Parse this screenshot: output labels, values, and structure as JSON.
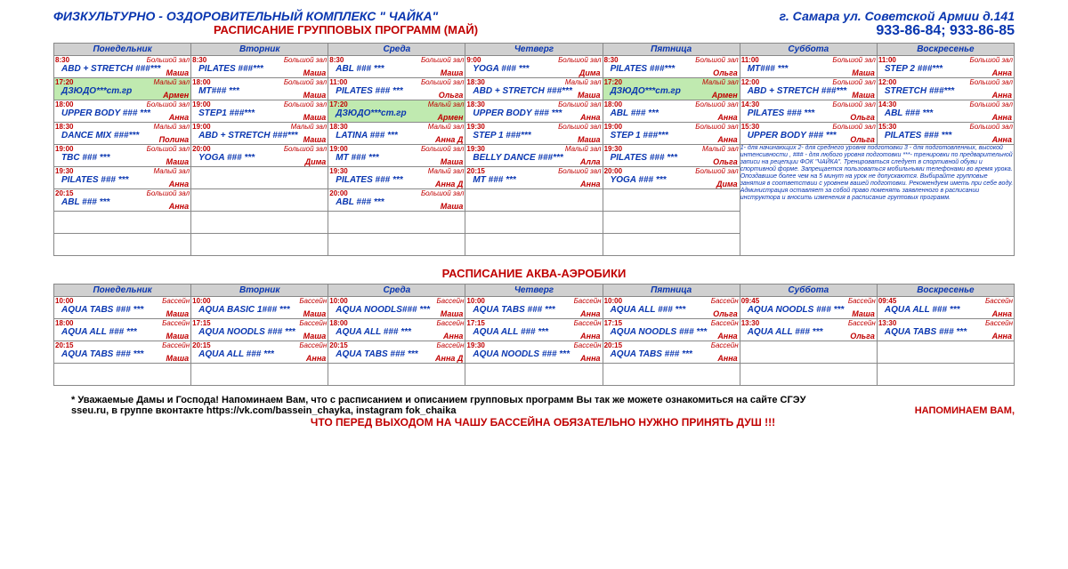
{
  "header": {
    "title": "ФИЗКУЛЬТУРНО - ОЗДОРОВИТЕЛЬНЫЙ КОМПЛЕКС \" ЧАЙКА\"",
    "address": "г. Самара ул. Советской Армии д.141",
    "subtitle": "РАСПИСАНИЕ ГРУППОВЫХ ПРОГРАММ (МАЙ)",
    "phones": "933-86-84; 933-86-85"
  },
  "days": [
    "Понедельник",
    "Вторник",
    "Среда",
    "Четверг",
    "Пятница",
    "Суббота",
    "Воскресенье"
  ],
  "group": {
    "rows": [
      [
        {
          "t": "8:30",
          "r": "Большой зал",
          "c": "ABD + STRETCH  ###***",
          "tr": "Маша"
        },
        {
          "t": "8:30",
          "r": "Большой зал",
          "c": "PILATES ###***",
          "tr": "Маша"
        },
        {
          "t": "8:30",
          "r": "Большой зал",
          "c": "ABL ### ***",
          "tr": "Маша"
        },
        {
          "t": "9:00",
          "r": "Большой зал",
          "c": "YOGA ### ***",
          "tr": "Дима"
        },
        {
          "t": "8:30",
          "r": "Большой зал",
          "c": "PILATES ###***",
          "tr": "Ольга"
        },
        {
          "t": "11:00",
          "r": "Большой зал",
          "c": "MT### ***",
          "tr": "Маша"
        },
        {
          "t": "11:00",
          "r": "Большой зал",
          "c": "STEP 2 ###***",
          "tr": "Анна"
        }
      ],
      [
        {
          "t": "17:20",
          "r": "Малый зал",
          "c": "ДЗЮДО***ст.гр",
          "tr": "Армен",
          "g": true
        },
        {
          "t": "18:00",
          "r": "Большой зал",
          "c": "MT### ***",
          "tr": "Маша"
        },
        {
          "t": "11:00",
          "r": "Большой зал",
          "c": "PILATES ### ***",
          "tr": "Ольга"
        },
        {
          "t": "18:30",
          "r": "Малый зал",
          "c": "ABD + STRETCH  ###***",
          "tr": "Маша"
        },
        {
          "t": "17:20",
          "r": "Малый зал",
          "c": "ДЗЮДО***ст.гр",
          "tr": "Армен",
          "g": true
        },
        {
          "t": "12:00",
          "r": "Большой зал",
          "c": "ABD + STRETCH  ###***",
          "tr": "Маша"
        },
        {
          "t": "12:00",
          "r": "Большой зал",
          "c": "STRETCH  ###***",
          "tr": "Анна"
        }
      ],
      [
        {
          "t": "18:00",
          "r": "Большой зал",
          "c": "UPPER BODY ### ***",
          "tr": "Анна"
        },
        {
          "t": "19:00",
          "r": "Большой зал",
          "c": "STEP1 ###***",
          "tr": "Маша"
        },
        {
          "t": "17:20",
          "r": "Малый зал",
          "c": "ДЗЮДО***ст.гр",
          "tr": "Армен",
          "g": true
        },
        {
          "t": "18:30",
          "r": "Большой зал",
          "c": "UPPER BODY ### ***",
          "tr": "Анна"
        },
        {
          "t": "18:00",
          "r": "Большой зал",
          "c": "ABL ### ***",
          "tr": "Анна"
        },
        {
          "t": "14:30",
          "r": "Большой зал",
          "c": "PILATES ### ***",
          "tr": "Ольга"
        },
        {
          "t": "14:30",
          "r": "Большой зал",
          "c": "ABL ### ***",
          "tr": "Анна"
        }
      ],
      [
        {
          "t": "18:30",
          "r": "Малый зал",
          "c": "DANCE MIX ###***",
          "tr": "Полина"
        },
        {
          "t": "19:00",
          "r": "Малый зал",
          "c": "ABD + STRETCH  ###***",
          "tr": "Маша"
        },
        {
          "t": "18:30",
          "r": "Малый зал",
          "c": "LATINA ### ***",
          "tr": "Анна Д"
        },
        {
          "t": "19:30",
          "r": "Большой зал",
          "c": "STEP 1 ###***",
          "tr": "Маша"
        },
        {
          "t": "19:00",
          "r": "Большой зал",
          "c": "STEP 1 ###***",
          "tr": "Анна"
        },
        {
          "t": "15:30",
          "r": "Большой зал",
          "c": "UPPER BODY ### ***",
          "tr": "Ольга"
        },
        {
          "t": "15:30",
          "r": "Большой зал",
          "c": "PILATES ### ***",
          "tr": "Анна"
        }
      ],
      [
        {
          "t": "19:00",
          "r": "Большой зал",
          "c": "TBC ### ***",
          "tr": "Маша"
        },
        {
          "t": "20:00",
          "r": "Большой зал",
          "c": "YOGA ### ***",
          "tr": "Дима"
        },
        {
          "t": "19:00",
          "r": "Большой зал",
          "c": "MT ### ***",
          "tr": "Маша"
        },
        {
          "t": "19:30",
          "r": "Малый зал",
          "c": "BELLY DANCE ###***",
          "tr": "Алла"
        },
        {
          "t": "19:30",
          "r": "Малый зал",
          "c": "PILATES ### ***",
          "tr": "Ольга"
        },
        {
          "note": true
        }
      ],
      [
        {
          "t": "19:30",
          "r": "Малый зал",
          "c": "PILATES ### ***",
          "tr": "Анна"
        },
        null,
        {
          "t": "19:30",
          "r": "Малый зал",
          "c": "PILATES ### ***",
          "tr": "Анна Д"
        },
        {
          "t": "20:15",
          "r": "Большой зал",
          "c": "MT ### ***",
          "tr": "Анна"
        },
        {
          "t": "20:00",
          "r": "Большой зал",
          "c": "YOGA ### ***",
          "tr": "Дима"
        }
      ],
      [
        {
          "t": "20:15",
          "r": "Большой зал",
          "c": "ABL ### ***",
          "tr": "Анна"
        },
        null,
        {
          "t": "20:00",
          "r": "Большой зал",
          "c": "ABL ### ***",
          "tr": "Маша"
        },
        null,
        null
      ],
      [
        null,
        null,
        null,
        null,
        null
      ],
      [
        null,
        null,
        null,
        null,
        null
      ]
    ]
  },
  "note_text": "1- для начинающих      2- для среднего уровня подготовки   3 - для подготовленных, высокой интенсивности ,  ### - для любого уровня подготовки  ***- тренировки по предварительной записи на рецепции ФОК \"ЧАЙКА\". Тренироваться следует в спортивной обуви и спортивной форме. Запрещается пользоваться мобильными телефонами во время урока. Опоздавшие более чем на 5 минут на урок не допускаются. Выбирайте групповые занятия в соответствии с уровнем вашей подготовки. Рекомендуем иметь при себе воду. Администрация оставляет за собой право поменять заявленного в расписании инструктора и вносить изменения в расписание групповых программ.",
  "aqua_title": "РАСПИСАНИЕ АКВА-АЭРОБИКИ",
  "aqua": {
    "rows": [
      [
        {
          "t": "10:00",
          "r": "Бассейн",
          "c": "AQUA TABS ### ***",
          "tr": "Маша"
        },
        {
          "t": "10:00",
          "r": "Бассейн",
          "c": "AQUA BASIC 1### ***",
          "tr": "Маша"
        },
        {
          "t": "10:00",
          "r": "Бассейн",
          "c": "AQUA  NOODLS### ***",
          "tr": "Маша"
        },
        {
          "t": "10:00",
          "r": "Бассейн",
          "c": "AQUA  TABS ### ***",
          "tr": "Анна"
        },
        {
          "t": "10:00",
          "r": "Бассейн",
          "c": "AQUA ALL ### ***",
          "tr": "Ольга"
        },
        {
          "t": "09:45",
          "r": "Бассейн",
          "c": "AQUA  NOODLS ### ***",
          "tr": "Маша"
        },
        {
          "t": "09:45",
          "r": "Бассейн",
          "c": "AQUA ALL ### ***",
          "tr": "Анна"
        }
      ],
      [
        {
          "t": "18:00",
          "r": "Бассейн",
          "c": "AQUA ALL ### ***",
          "tr": "Маша"
        },
        {
          "t": "17:15",
          "r": "Бассейн",
          "c": "AQUA  NOODLS ### ***",
          "tr": "Маша"
        },
        {
          "t": "18:00",
          "r": "Бассейн",
          "c": "AQUA ALL ### ***",
          "tr": "Анна"
        },
        {
          "t": "17:15",
          "r": "Бассейн",
          "c": "AQUA ALL ### ***",
          "tr": "Анна"
        },
        {
          "t": "17:15",
          "r": "Бассейн",
          "c": "AQUA  NOODLS ### ***",
          "tr": "Анна"
        },
        {
          "t": "13:30",
          "r": "Бассейн",
          "c": "AQUA ALL ### ***",
          "tr": "Ольга"
        },
        {
          "t": "13:30",
          "r": "Бассейн",
          "c": "AQUA  TABS ### ***",
          "tr": "Анна"
        }
      ],
      [
        {
          "t": "20:15",
          "r": "Бассейн",
          "c": "AQUA  TABS ### ***",
          "tr": "Маша"
        },
        {
          "t": "20:15",
          "r": "Бассейн",
          "c": "AQUA ALL ### ***",
          "tr": "Анна"
        },
        {
          "t": "20:15",
          "r": "Бассейн",
          "c": "AQUA  TABS ### ***",
          "tr": "Анна Д"
        },
        {
          "t": "19:30",
          "r": "Бассейн",
          "c": "AQUA  NOODLS ### ***",
          "tr": "Анна"
        },
        {
          "t": "20:15",
          "r": "Бассейн",
          "c": "AQUA  TABS ### ***",
          "tr": "Анна"
        },
        null,
        null
      ],
      [
        null,
        null,
        null,
        null,
        null,
        null,
        null
      ]
    ]
  },
  "footer": {
    "l1": "* Уважаемые Дамы и Господа! Напоминаем Вам, что с расписанием и описанием групповых программ  Вы так же можете ознакомиться на сайте СГЭУ",
    "l2a": "sseu.ru,  в группе вконтакте https://vk.com/bassein_chayka, instagram fok_chaika",
    "l2b": "НАПОМИНАЕМ ВАМ,",
    "l3": "ЧТО ПЕРЕД ВЫХОДОМ НА ЧАШУ БАССЕЙНА ОБЯЗАТЕЛЬНО НУЖНО ПРИНЯТЬ ДУШ !!!"
  }
}
